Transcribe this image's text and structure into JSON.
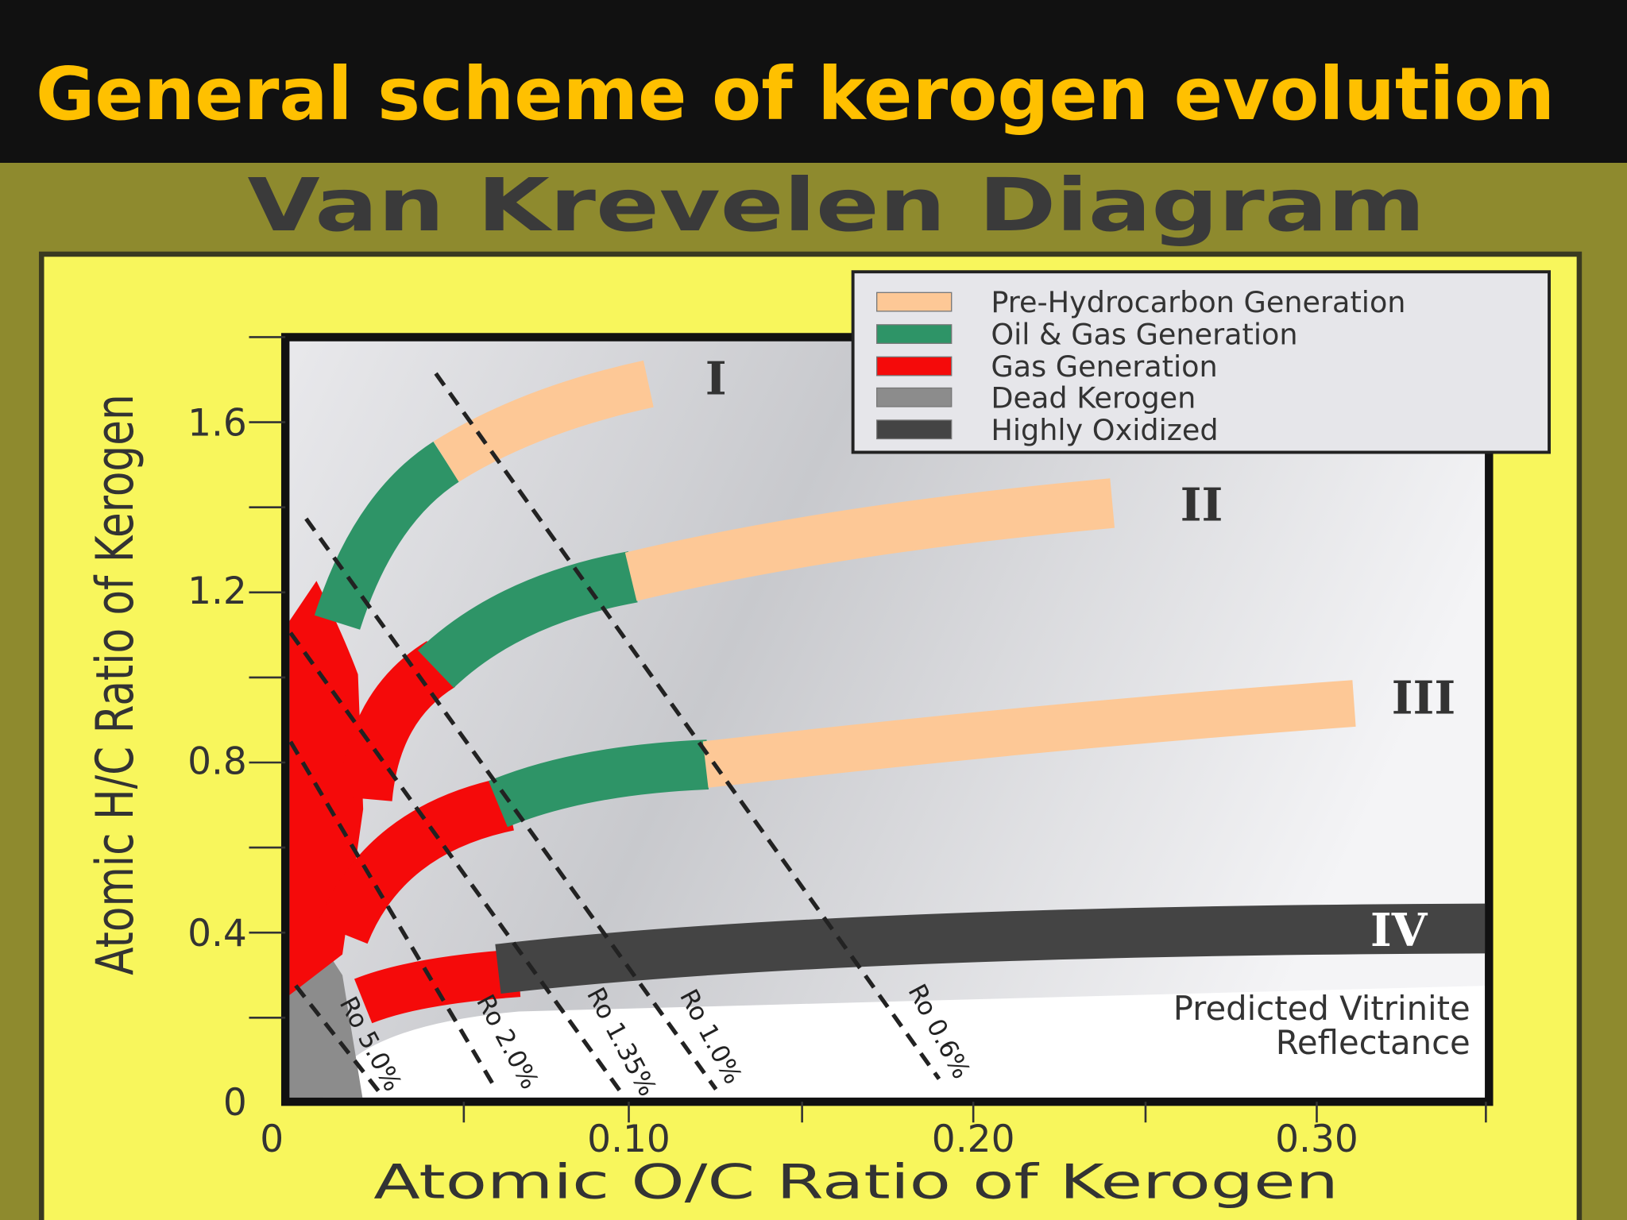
{
  "header": {
    "title": "General scheme of kerogen evolution"
  },
  "diagram": {
    "title": "Van Krevelen Diagram",
    "legend": [
      {
        "label": "Pre-Hydrocarbon Generation",
        "color": "#fdc896"
      },
      {
        "label": "Oil & Gas Generation",
        "color": "#2e9467"
      },
      {
        "label": "Gas Generation",
        "color": "#f50a0a"
      },
      {
        "label": "Dead Kerogen",
        "color": "#8c8c8c"
      },
      {
        "label": "Highly Oxidized",
        "color": "#444444"
      }
    ],
    "y_axis": {
      "label": "Atomic H/C Ratio of Kerogen",
      "ticks": [
        "0",
        "0.4",
        "0.8",
        "1.2",
        "1.6"
      ]
    },
    "x_axis": {
      "label": "Atomic O/C Ratio of Kerogen",
      "ticks": [
        "0",
        "0.10",
        "0.20",
        "0.30"
      ]
    },
    "kerogen_types": [
      "I",
      "II",
      "III",
      "IV"
    ],
    "reflectance_lines": [
      "Ro 5.0%",
      "Ro 2.0%",
      "Ro 1.35%",
      "Ro 1.0%",
      "Ro 0.6%"
    ],
    "annotation": [
      "Predicted Vitrinite",
      "Reflectance"
    ]
  }
}
